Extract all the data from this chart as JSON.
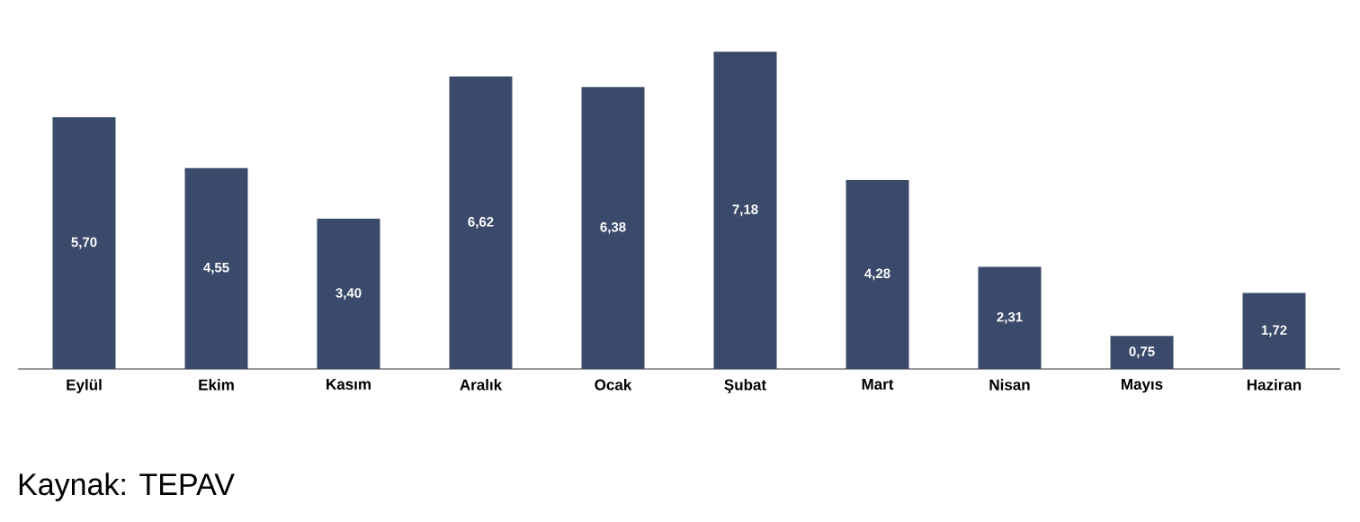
{
  "chart_data": {
    "type": "bar",
    "categories": [
      "Eylül",
      "Ekim",
      "Kasım",
      "Aralık",
      "Ocak",
      "Şubat",
      "Mart",
      "Nisan",
      "Mayıs",
      "Haziran"
    ],
    "values": [
      5.7,
      4.55,
      3.4,
      6.62,
      6.38,
      7.18,
      4.28,
      2.31,
      0.75,
      1.72
    ],
    "value_labels": [
      "5,70",
      "4,55",
      "3,40",
      "6,62",
      "6,38",
      "7,18",
      "4,28",
      "2,31",
      "0,75",
      "1,72"
    ],
    "color": "#3b4a6b",
    "annotations": [
      "Kaynak: TEPAV"
    ]
  }
}
